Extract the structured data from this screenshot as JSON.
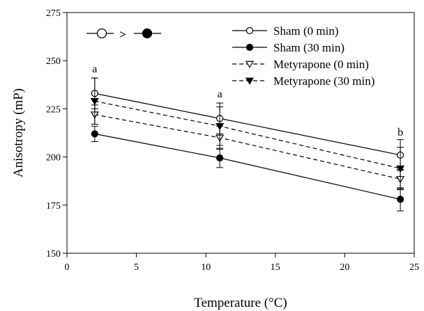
{
  "chart_data": {
    "type": "line",
    "xlabel": "Temperature (°C)",
    "ylabel": "Anisotropy (mP)",
    "xlim": [
      0,
      25
    ],
    "ylim": [
      150,
      275
    ],
    "xticks": [
      0,
      5,
      10,
      15,
      20,
      25
    ],
    "yticks": [
      150,
      175,
      200,
      225,
      250,
      275
    ],
    "x": [
      2,
      11,
      24
    ],
    "series": [
      {
        "name": "Sham (0 min)",
        "marker": "circle-open",
        "line": "solid",
        "values": [
          233,
          220,
          201
        ],
        "errors": [
          8,
          8,
          8
        ]
      },
      {
        "name": "Sham (30 min)",
        "marker": "circle-filled",
        "line": "solid",
        "values": [
          212,
          199.5,
          178
        ],
        "errors": [
          4,
          5,
          6
        ]
      },
      {
        "name": "Metyrapone (0 min)",
        "marker": "triangle-down-open",
        "line": "dashed",
        "values": [
          222,
          210,
          188.5
        ],
        "errors": [
          5,
          6,
          5
        ]
      },
      {
        "name": "Metyrapone (30 min)",
        "marker": "triangle-down-filled",
        "line": "dashed",
        "values": [
          229,
          216,
          194
        ],
        "errors": [
          12,
          10,
          11
        ]
      }
    ],
    "annotations": [
      {
        "text": "a",
        "x": 2,
        "y": 244
      },
      {
        "text": "a",
        "x": 11,
        "y": 231
      },
      {
        "text": "b",
        "x": 24,
        "y": 211
      }
    ],
    "significance_key": {
      "left": "open-circle",
      "symbol": ">",
      "right": "filled-circle"
    },
    "legend": "top-right",
    "grid": false
  }
}
